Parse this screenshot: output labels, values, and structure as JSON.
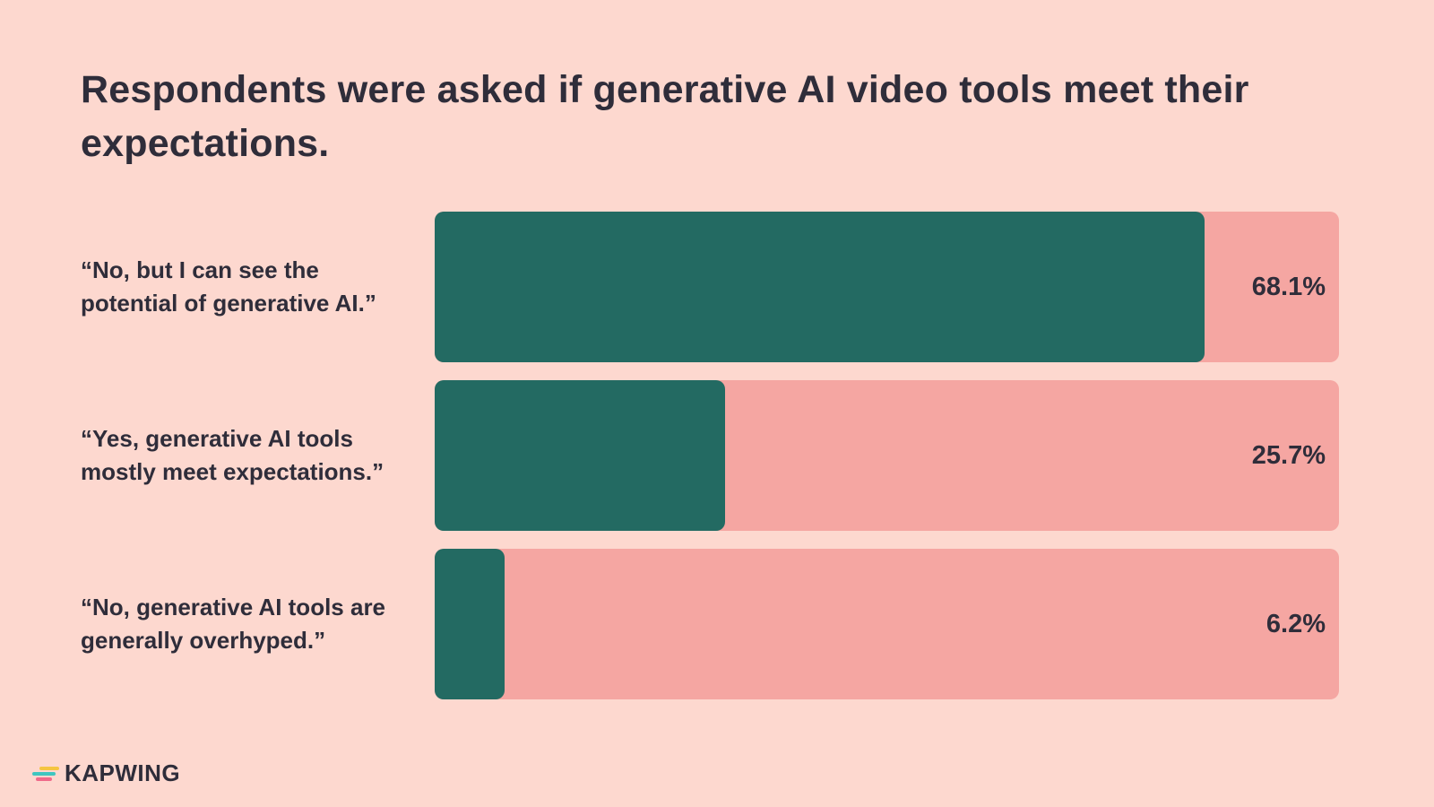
{
  "colors": {
    "background": "#fdd8cf",
    "bar_fill": "#236a62",
    "bar_track": "#f5a6a2",
    "text": "#2f2d3a",
    "logo_teal": "#3fc6c0",
    "logo_yellow": "#f5c542",
    "logo_pink": "#f06a8a"
  },
  "chart_data": {
    "type": "bar",
    "orientation": "horizontal",
    "title": "Respondents were asked if generative AI video tools meet their expectations.",
    "categories": [
      "“No, but I can see the potential of generative AI.”",
      "“Yes, generative AI tools mostly meet expectations.”",
      "“No, generative AI tools are generally overhyped.”"
    ],
    "values": [
      68.1,
      25.7,
      6.2
    ],
    "value_labels": [
      "68.1%",
      "25.7%",
      "6.2%"
    ],
    "xlim": [
      0,
      80
    ],
    "grid": false,
    "legend": "none"
  },
  "brand": {
    "logo_icon": "kapwing-stripes-icon",
    "name": "KAPWING"
  }
}
